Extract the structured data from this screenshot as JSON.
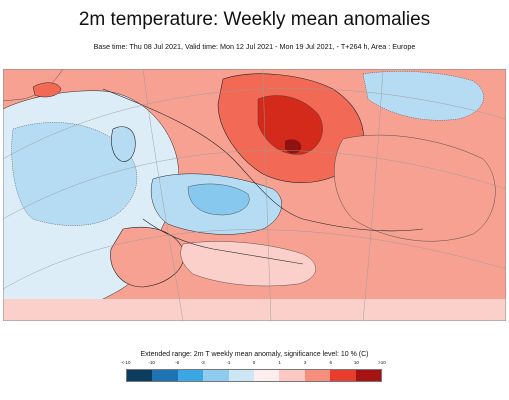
{
  "header": {
    "title": "2m temperature: Weekly mean anomalies",
    "subtitle": "Base time: Thu 08 Jul 2021, Valid time: Mon 12 Jul 2021 - Mon 19 Jul 2021, - T+264 h, Area : Europe"
  },
  "map": {
    "region": "Europe",
    "background_colors": {
      "land_neutral": "#f3f3f3",
      "sea_neutral": "#ffffff",
      "coast": "#222222",
      "graticule": "#a0a0a0",
      "significance_contour": "#333333"
    },
    "anomaly_colors": {
      "warm_1": "#fbd0cb",
      "warm_2": "#f7a192",
      "warm_3": "#f26a55",
      "warm_4": "#d42a1c",
      "warm_5": "#8e1210",
      "cold_1": "#dcedf8",
      "cold_2": "#b5dcf3",
      "cold_3": "#86c8ee"
    }
  },
  "legend": {
    "title": "Extended range: 2m T weekly mean anomaly, significance level: 10 % (C)",
    "ticks": [
      "<-10",
      "-10",
      "-6",
      "-3",
      "-1",
      "0",
      "1",
      "3",
      "6",
      "10",
      ">10"
    ],
    "colors": [
      "#0c3d5f",
      "#1e73b2",
      "#3aa6e3",
      "#8fcbef",
      "#cde6f6",
      "#fdeeee",
      "#fcc8c2",
      "#f78d7c",
      "#e63d2c",
      "#a51412"
    ]
  }
}
